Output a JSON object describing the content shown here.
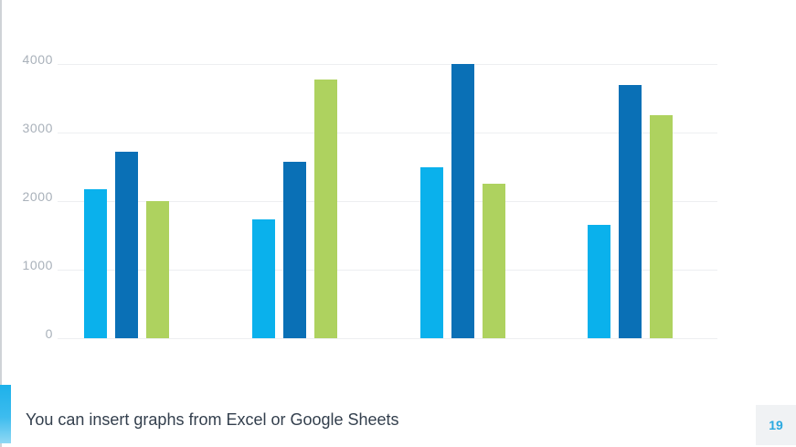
{
  "slide": {
    "caption": "You can insert graphs from Excel or Google Sheets",
    "page_number": "19"
  },
  "colors": {
    "series_light_blue": "#0ab1ec",
    "series_dark_blue": "#0a70b6",
    "series_green": "#aed25f",
    "gridline": "#edeff1",
    "axis_label": "#a9b1ba",
    "caption_text": "#333f4d",
    "page_number_text": "#2aa9e0",
    "page_number_bg": "#f0f2f4",
    "accent_bar": "#1db1ea",
    "left_border": "#cfd3d7"
  },
  "chart_data": {
    "type": "bar",
    "title": "",
    "xlabel": "",
    "ylabel": "",
    "ylim": [
      0,
      4000
    ],
    "yticks": [
      0,
      1000,
      2000,
      3000,
      4000
    ],
    "ytick_labels": [
      "0",
      "1000",
      "2000",
      "3000",
      "4000"
    ],
    "grid": "horizontal",
    "legend": "none",
    "categories": [
      "",
      "",
      "",
      ""
    ],
    "series": [
      {
        "name": "series-1-light-blue",
        "color": "#0ab1ec",
        "values": [
          2170,
          1730,
          2500,
          1650
        ]
      },
      {
        "name": "series-2-dark-blue",
        "color": "#0a70b6",
        "values": [
          2720,
          2570,
          4000,
          3700
        ]
      },
      {
        "name": "series-3-green",
        "color": "#aed25f",
        "values": [
          2000,
          3780,
          2250,
          3260
        ]
      }
    ]
  }
}
